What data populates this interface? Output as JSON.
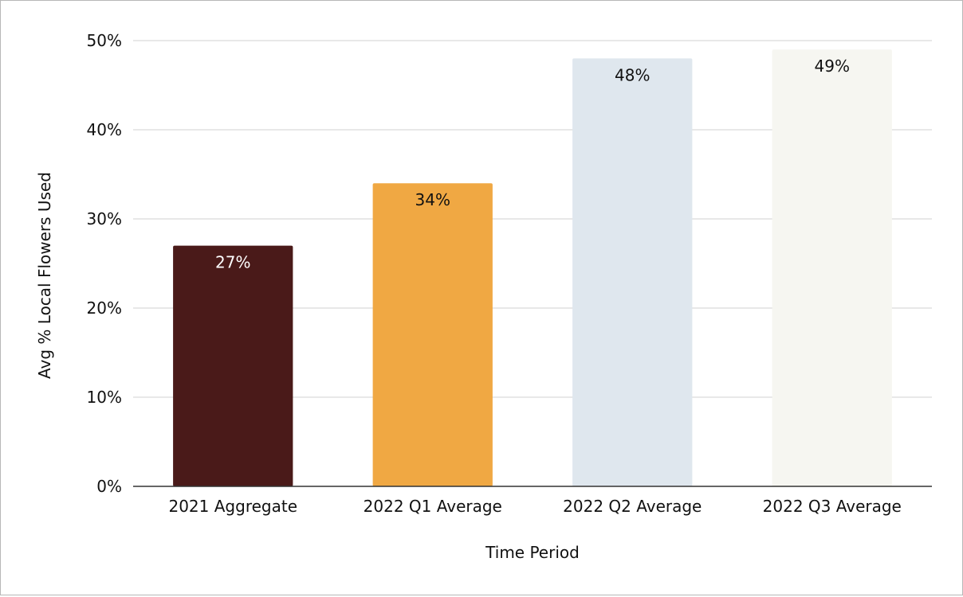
{
  "chart_data": {
    "type": "bar",
    "title": "",
    "xlabel": "Time Period",
    "ylabel": "Avg % Local Flowers Used",
    "categories": [
      "2021 Aggregate",
      "2022 Q1 Average",
      "2022 Q2 Average",
      "2022 Q3 Average"
    ],
    "values": [
      27,
      34,
      48,
      49
    ],
    "data_labels": [
      "27%",
      "34%",
      "48%",
      "49%"
    ],
    "bar_colors": [
      "#4a1a19",
      "#f0a843",
      "#dfe7ee",
      "#f6f6f1"
    ],
    "label_colors": [
      "#ffffff",
      "#111111",
      "#111111",
      "#111111"
    ],
    "ylim": [
      0,
      50
    ],
    "yticks": [
      0,
      10,
      20,
      30,
      40,
      50
    ],
    "ytick_labels": [
      "0%",
      "10%",
      "20%",
      "30%",
      "40%",
      "50%"
    ],
    "grid": true,
    "legend": "none"
  }
}
